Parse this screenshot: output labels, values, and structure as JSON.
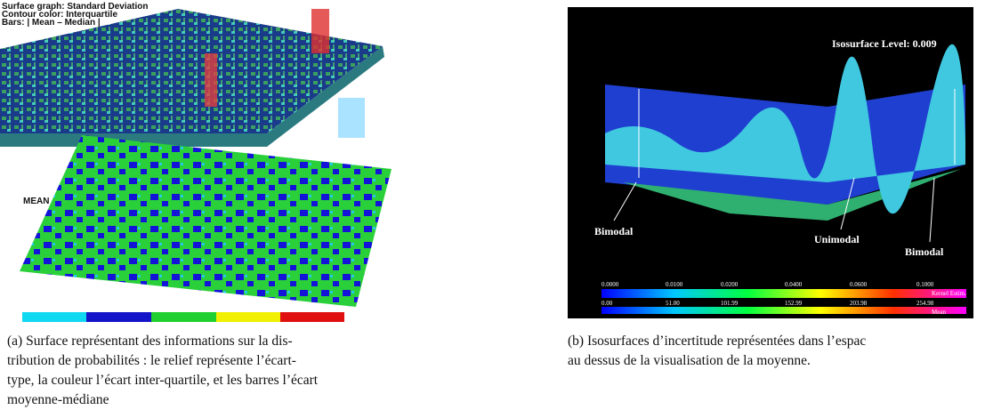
{
  "figure_a": {
    "labels": [
      "Surface graph: Standard Deviation",
      "Contour color: Interquartile",
      "Bars: | Mean – Median |"
    ],
    "map_label": "MEAN",
    "caption_lines": [
      "(a) Surface représentant des informations sur la dis-",
      "tribution de probabilités : le relief représente l’écart-",
      "type, la couleur l’écart inter-quartile, et les barres l’écart",
      "moyenne-médiane"
    ]
  },
  "figure_b": {
    "title": "Isosurface Level: 0.009",
    "annotations": [
      "Bimodal",
      "Unimodal",
      "Bimodal"
    ],
    "colorbar_top": {
      "ticks": [
        "0.0000",
        "0.0100",
        "0.0200",
        "0.0400",
        "0.0600",
        "0.1000"
      ],
      "label": "Kernel Estim."
    },
    "colorbar_bottom": {
      "ticks": [
        "0.00",
        "51.00",
        "101.99",
        "152.99",
        "203.98",
        "254.98"
      ],
      "label": "Mean"
    },
    "caption_lines": [
      "(b) Isosurfaces d’incertitude représentées dans l’espac",
      "au dessus de la visualisation de la moyenne."
    ]
  }
}
